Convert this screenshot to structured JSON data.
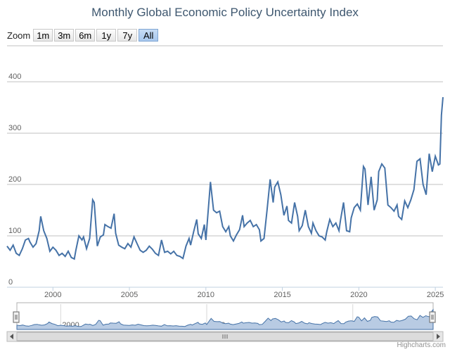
{
  "title": "Monthly Global Economic Policy Uncertainty Index",
  "zoom": {
    "label": "Zoom",
    "buttons": [
      {
        "label": "1m",
        "active": false
      },
      {
        "label": "3m",
        "active": false
      },
      {
        "label": "6m",
        "active": false
      },
      {
        "label": "1y",
        "active": false
      },
      {
        "label": "7y",
        "active": false
      },
      {
        "label": "All",
        "active": true
      }
    ]
  },
  "credit": "Highcharts.com",
  "colors": {
    "line": "#4572a7",
    "navigator_fill": "#b8cbe3",
    "grid": "#c0c0c0"
  },
  "chart_data": {
    "type": "line",
    "x_range": [
      1997,
      2025.5
    ],
    "ylim": [
      0,
      470
    ],
    "y_ticks": [
      0,
      100,
      200,
      300,
      400
    ],
    "x_ticks": [
      2000,
      2005,
      2010,
      2015,
      2020,
      2025
    ],
    "navigator_x_ticks": [
      2000,
      2010,
      2020
    ],
    "series": [
      {
        "points": [
          [
            1997.0,
            80
          ],
          [
            1997.2,
            72
          ],
          [
            1997.4,
            82
          ],
          [
            1997.6,
            66
          ],
          [
            1997.8,
            62
          ],
          [
            1998.0,
            75
          ],
          [
            1998.2,
            92
          ],
          [
            1998.4,
            95
          ],
          [
            1998.5,
            88
          ],
          [
            1998.7,
            78
          ],
          [
            1998.9,
            85
          ],
          [
            1999.1,
            110
          ],
          [
            1999.2,
            138
          ],
          [
            1999.4,
            110
          ],
          [
            1999.6,
            95
          ],
          [
            1999.8,
            70
          ],
          [
            2000.0,
            78
          ],
          [
            2000.2,
            72
          ],
          [
            2000.4,
            62
          ],
          [
            2000.6,
            66
          ],
          [
            2000.8,
            60
          ],
          [
            2001.0,
            70
          ],
          [
            2001.2,
            58
          ],
          [
            2001.4,
            55
          ],
          [
            2001.5,
            72
          ],
          [
            2001.7,
            100
          ],
          [
            2001.9,
            92
          ],
          [
            2002.0,
            98
          ],
          [
            2002.2,
            75
          ],
          [
            2002.4,
            95
          ],
          [
            2002.6,
            170
          ],
          [
            2002.7,
            165
          ],
          [
            2002.9,
            80
          ],
          [
            2003.1,
            98
          ],
          [
            2003.3,
            102
          ],
          [
            2003.4,
            122
          ],
          [
            2003.6,
            118
          ],
          [
            2003.8,
            115
          ],
          [
            2004.0,
            143
          ],
          [
            2004.1,
            105
          ],
          [
            2004.3,
            82
          ],
          [
            2004.5,
            78
          ],
          [
            2004.7,
            75
          ],
          [
            2004.9,
            85
          ],
          [
            2005.1,
            78
          ],
          [
            2005.3,
            98
          ],
          [
            2005.5,
            85
          ],
          [
            2005.7,
            72
          ],
          [
            2005.9,
            68
          ],
          [
            2006.1,
            72
          ],
          [
            2006.3,
            80
          ],
          [
            2006.5,
            74
          ],
          [
            2006.7,
            66
          ],
          [
            2006.9,
            62
          ],
          [
            2007.1,
            92
          ],
          [
            2007.3,
            68
          ],
          [
            2007.5,
            70
          ],
          [
            2007.7,
            65
          ],
          [
            2007.9,
            70
          ],
          [
            2008.1,
            62
          ],
          [
            2008.3,
            60
          ],
          [
            2008.5,
            56
          ],
          [
            2008.7,
            80
          ],
          [
            2008.9,
            95
          ],
          [
            2009.0,
            82
          ],
          [
            2009.2,
            108
          ],
          [
            2009.4,
            132
          ],
          [
            2009.5,
            104
          ],
          [
            2009.7,
            95
          ],
          [
            2009.9,
            122
          ],
          [
            2010.0,
            92
          ],
          [
            2010.2,
            168
          ],
          [
            2010.3,
            205
          ],
          [
            2010.5,
            150
          ],
          [
            2010.7,
            145
          ],
          [
            2010.9,
            148
          ],
          [
            2011.1,
            118
          ],
          [
            2011.3,
            108
          ],
          [
            2011.5,
            118
          ],
          [
            2011.6,
            100
          ],
          [
            2011.8,
            90
          ],
          [
            2012.0,
            102
          ],
          [
            2012.2,
            112
          ],
          [
            2012.4,
            140
          ],
          [
            2012.5,
            118
          ],
          [
            2012.7,
            125
          ],
          [
            2012.9,
            130
          ],
          [
            2013.1,
            118
          ],
          [
            2013.3,
            122
          ],
          [
            2013.5,
            112
          ],
          [
            2013.6,
            90
          ],
          [
            2013.8,
            95
          ],
          [
            2014.0,
            150
          ],
          [
            2014.2,
            210
          ],
          [
            2014.4,
            165
          ],
          [
            2014.5,
            195
          ],
          [
            2014.7,
            205
          ],
          [
            2014.9,
            180
          ],
          [
            2015.1,
            140
          ],
          [
            2015.3,
            158
          ],
          [
            2015.4,
            130
          ],
          [
            2015.6,
            125
          ],
          [
            2015.8,
            165
          ],
          [
            2016.0,
            138
          ],
          [
            2016.1,
            110
          ],
          [
            2016.3,
            120
          ],
          [
            2016.5,
            150
          ],
          [
            2016.7,
            118
          ],
          [
            2016.9,
            105
          ],
          [
            2017.0,
            125
          ],
          [
            2017.2,
            110
          ],
          [
            2017.4,
            100
          ],
          [
            2017.6,
            98
          ],
          [
            2017.8,
            92
          ],
          [
            2017.9,
            108
          ],
          [
            2018.1,
            132
          ],
          [
            2018.3,
            118
          ],
          [
            2018.5,
            125
          ],
          [
            2018.7,
            110
          ],
          [
            2018.8,
            130
          ],
          [
            2019.0,
            165
          ],
          [
            2019.2,
            110
          ],
          [
            2019.4,
            108
          ],
          [
            2019.5,
            135
          ],
          [
            2019.7,
            155
          ],
          [
            2019.9,
            162
          ],
          [
            2020.1,
            150
          ],
          [
            2020.3,
            235
          ],
          [
            2020.4,
            230
          ],
          [
            2020.6,
            160
          ],
          [
            2020.8,
            215
          ],
          [
            2021.0,
            150
          ],
          [
            2021.2,
            170
          ],
          [
            2021.3,
            225
          ],
          [
            2021.5,
            240
          ],
          [
            2021.7,
            232
          ],
          [
            2021.9,
            160
          ],
          [
            2022.1,
            155
          ],
          [
            2022.3,
            148
          ],
          [
            2022.5,
            160
          ],
          [
            2022.6,
            138
          ],
          [
            2022.8,
            132
          ],
          [
            2023.0,
            168
          ],
          [
            2023.2,
            155
          ],
          [
            2023.4,
            170
          ],
          [
            2023.6,
            190
          ],
          [
            2023.8,
            245
          ],
          [
            2024.0,
            250
          ],
          [
            2024.2,
            200
          ],
          [
            2024.4,
            180
          ],
          [
            2024.6,
            260
          ],
          [
            2024.8,
            225
          ],
          [
            2025.0,
            255
          ],
          [
            2025.2,
            238
          ],
          [
            2025.3,
            240
          ],
          [
            2025.4,
            335
          ],
          [
            2025.5,
            370
          ]
        ]
      }
    ]
  }
}
